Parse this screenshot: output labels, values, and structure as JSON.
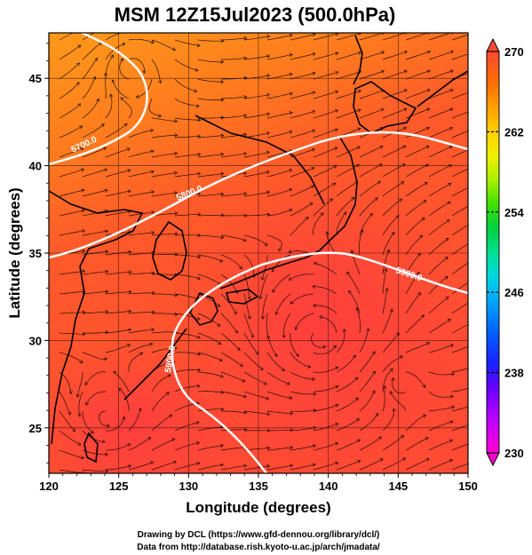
{
  "title": "MSM 12Z15Jul2023 (500.0hPa)",
  "x_axis": {
    "label": "Longitude (degrees)",
    "ticks": [
      "120",
      "125",
      "130",
      "135",
      "140",
      "145",
      "150"
    ],
    "range": [
      120,
      150
    ]
  },
  "y_axis": {
    "label": "Latitude  (degrees)",
    "ticks": [
      "25",
      "30",
      "35",
      "40",
      "45"
    ],
    "range": [
      22.4,
      47.6
    ]
  },
  "colorbar": {
    "ticks": [
      "270",
      "262",
      "254",
      "246",
      "238",
      "230"
    ],
    "range": [
      230,
      270
    ],
    "colors": [
      "#ff00d0",
      "#c000ff",
      "#6a00ff",
      "#1a20ff",
      "#0060ff",
      "#00a8ff",
      "#00d8e0",
      "#00e090",
      "#00d040",
      "#40e000",
      "#a8f000",
      "#f0f000",
      "#ffd000",
      "#ffa000",
      "#ff7000",
      "#ff4a30"
    ]
  },
  "contours": [
    {
      "label": "5700.0"
    },
    {
      "label": "5800.0"
    },
    {
      "label": "5900.0"
    }
  ],
  "footer": {
    "line1": "Drawing by DCL (https://www.gfd-dennou.org/library/dcl/)",
    "line2": "Data from http://database.rish.kyoto-u.ac.jp/arch/jmadata/"
  }
}
